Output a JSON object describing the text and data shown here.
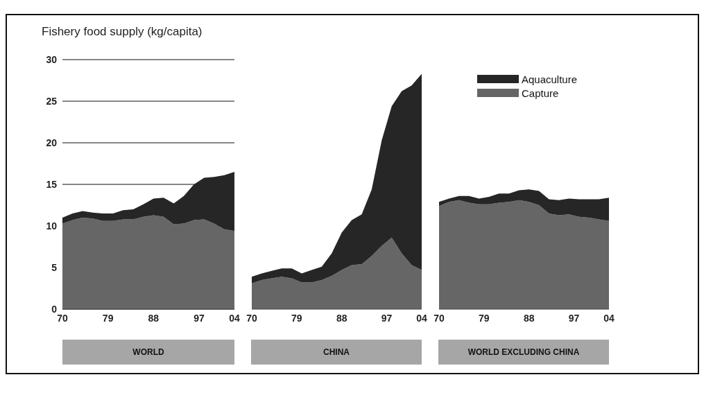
{
  "chart_data": [
    {
      "type": "area",
      "title": "Fishery food supply (kg/capita)",
      "xlabel": "WORLD",
      "stacked": true,
      "grid": "y",
      "x": [
        1970,
        1972,
        1974,
        1976,
        1978,
        1980,
        1982,
        1984,
        1986,
        1988,
        1990,
        1992,
        1994,
        1996,
        1998,
        2000,
        2002,
        2004
      ],
      "series": [
        {
          "color": "#666666",
          "values": [
            10.3,
            10.7,
            11.0,
            10.9,
            10.6,
            10.6,
            10.8,
            10.8,
            11.1,
            11.3,
            11.1,
            10.2,
            10.3,
            10.7,
            10.8,
            10.3,
            9.6,
            9.4
          ]
        },
        {
          "color": "#262626",
          "values": [
            0.7,
            0.8,
            0.8,
            0.7,
            0.9,
            0.9,
            1.1,
            1.2,
            1.5,
            2.0,
            2.3,
            2.5,
            3.3,
            4.3,
            5.0,
            5.6,
            6.5,
            7.1
          ]
        }
      ],
      "xlim": [
        1970,
        2004
      ],
      "xticks": [
        {
          "value": 1970,
          "label": "70"
        },
        {
          "value": 1979,
          "label": "79"
        },
        {
          "value": 1988,
          "label": "88"
        },
        {
          "value": 1997,
          "label": "97"
        },
        {
          "value": 2004,
          "label": "04"
        }
      ],
      "ylim": [
        0,
        30
      ],
      "yticks": [
        0,
        5,
        10,
        15,
        20,
        25,
        30
      ]
    },
    {
      "type": "area",
      "xlabel": "CHINA",
      "stacked": true,
      "grid": "y",
      "tick_labels": "x",
      "x": [
        1970,
        1972,
        1974,
        1976,
        1978,
        1980,
        1982,
        1984,
        1986,
        1988,
        1990,
        1992,
        1994,
        1996,
        1998,
        2000,
        2002,
        2004
      ],
      "series": [
        {
          "color": "#666666",
          "values": [
            3.1,
            3.5,
            3.7,
            3.9,
            3.7,
            3.2,
            3.2,
            3.5,
            4.0,
            4.7,
            5.3,
            5.4,
            6.4,
            7.6,
            8.6,
            6.7,
            5.3,
            4.7
          ]
        },
        {
          "color": "#262626",
          "values": [
            0.8,
            0.8,
            0.9,
            1.0,
            1.2,
            1.1,
            1.5,
            1.6,
            2.7,
            4.5,
            5.4,
            6.0,
            8.0,
            12.7,
            15.8,
            19.5,
            21.6,
            23.6
          ]
        }
      ],
      "xlim": [
        1970,
        2004
      ],
      "xticks": [
        {
          "value": 1970,
          "label": "70"
        },
        {
          "value": 1979,
          "label": "79"
        },
        {
          "value": 1988,
          "label": "88"
        },
        {
          "value": 1997,
          "label": "97"
        },
        {
          "value": 2004,
          "label": "04"
        }
      ],
      "ylim": [
        0,
        30
      ],
      "yticks": [
        0,
        5,
        10,
        15,
        20,
        25,
        30
      ]
    },
    {
      "type": "area",
      "xlabel": "WORLD EXCLUDING CHINA",
      "stacked": true,
      "grid": "y",
      "tick_labels": "x",
      "legend": "top",
      "x": [
        1970,
        1972,
        1974,
        1976,
        1978,
        1980,
        1982,
        1984,
        1986,
        1988,
        1990,
        1992,
        1994,
        1996,
        1998,
        2000,
        2002,
        2004
      ],
      "series": [
        {
          "name": "Capture",
          "color": "#666666",
          "values": [
            12.4,
            12.9,
            13.1,
            12.8,
            12.6,
            12.6,
            12.8,
            12.9,
            13.1,
            12.9,
            12.5,
            11.5,
            11.3,
            11.4,
            11.1,
            11.0,
            10.8,
            10.6
          ]
        },
        {
          "name": "Aquaculture",
          "color": "#262626",
          "values": [
            0.5,
            0.4,
            0.5,
            0.8,
            0.7,
            0.9,
            1.1,
            1.0,
            1.2,
            1.5,
            1.7,
            1.7,
            1.8,
            1.9,
            2.1,
            2.2,
            2.4,
            2.8
          ]
        }
      ],
      "xlim": [
        1970,
        2004
      ],
      "xticks": [
        {
          "value": 1970,
          "label": "70"
        },
        {
          "value": 1979,
          "label": "79"
        },
        {
          "value": 1988,
          "label": "88"
        },
        {
          "value": 1997,
          "label": "97"
        },
        {
          "value": 2004,
          "label": "04"
        }
      ],
      "ylim": [
        0,
        30
      ],
      "yticks": [
        0,
        5,
        10,
        15,
        20,
        25,
        30
      ]
    }
  ]
}
